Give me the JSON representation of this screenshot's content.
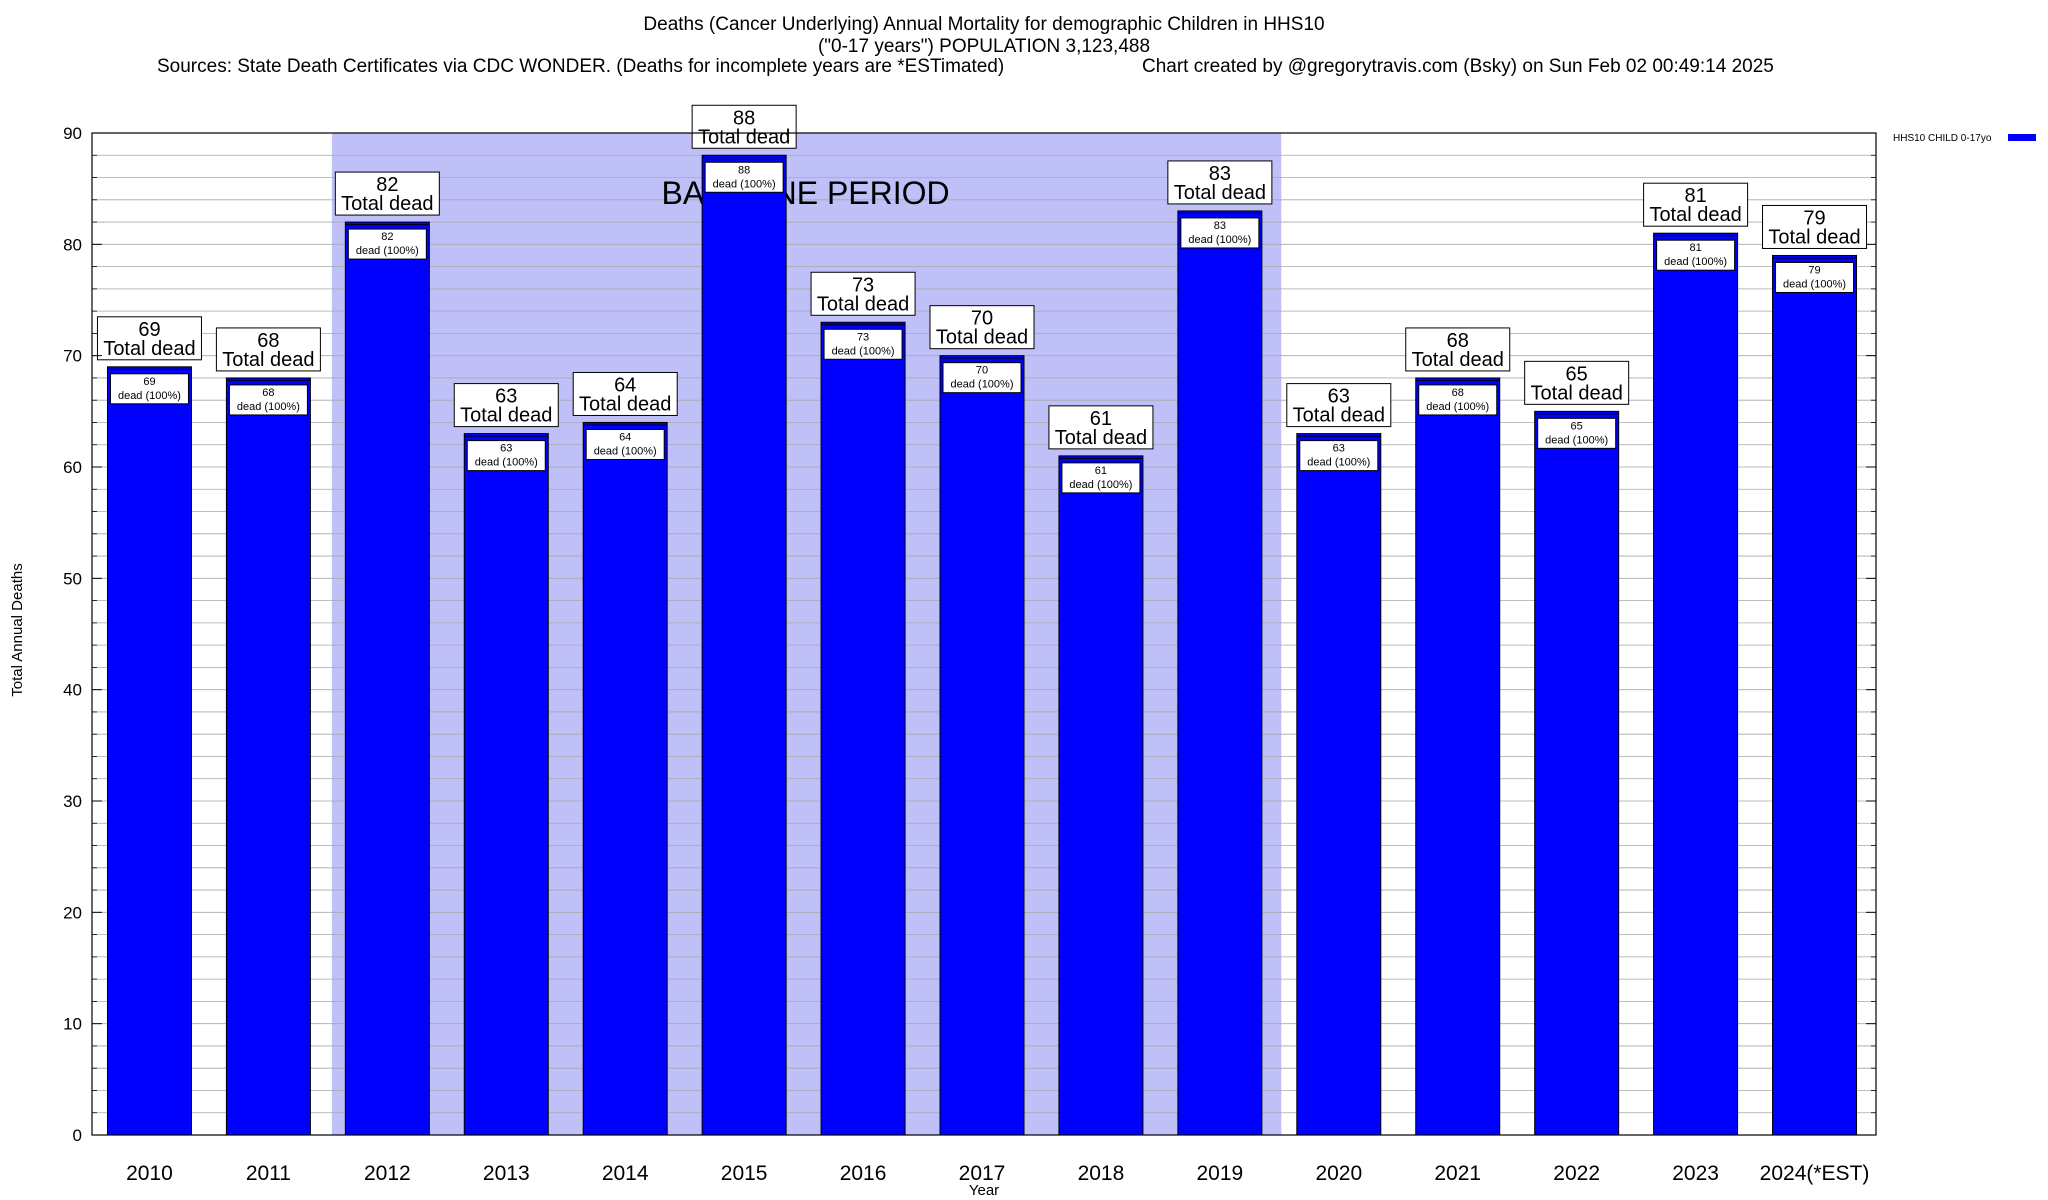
{
  "chart_data": {
    "type": "bar",
    "title_lines": [
      "Deaths (Cancer Underlying) Annual Mortality for demographic Children in HHS10",
      "(\"0-17 years\") POPULATION 3,123,488"
    ],
    "sources": "Sources: State Death Certificates via CDC WONDER. (Deaths for incomplete years are *ESTimated)",
    "credit": "Chart created by @gregorytravis.com (Bsky) on Sun Feb 02 00:49:14 2025",
    "xlabel": "Year",
    "ylabel": "Total Annual Deaths",
    "ylim": [
      0,
      90
    ],
    "yticks": [
      0,
      10,
      20,
      30,
      40,
      50,
      60,
      70,
      80,
      90
    ],
    "minor_tick_step": 2,
    "grid": true,
    "categories": [
      "2010",
      "2011",
      "2012",
      "2013",
      "2014",
      "2015",
      "2016",
      "2017",
      "2018",
      "2019",
      "2020",
      "2021",
      "2022",
      "2023",
      "2024(*EST)"
    ],
    "series": [
      {
        "name": "HHS10 CHILD 0-17yo",
        "color": "#0000ff",
        "values": [
          69,
          68,
          82,
          63,
          64,
          88,
          73,
          70,
          61,
          83,
          63,
          68,
          65,
          81,
          79
        ]
      }
    ],
    "bar_label_top": "Total dead",
    "bar_label_inner": "dead (100%)",
    "bar_label_inner_pct": "100%",
    "baseline_period": {
      "label": "BASELINE PERIOD",
      "start": "2012",
      "end": "2019",
      "color": "#c0c0f8"
    },
    "legend_position": "top-right"
  }
}
